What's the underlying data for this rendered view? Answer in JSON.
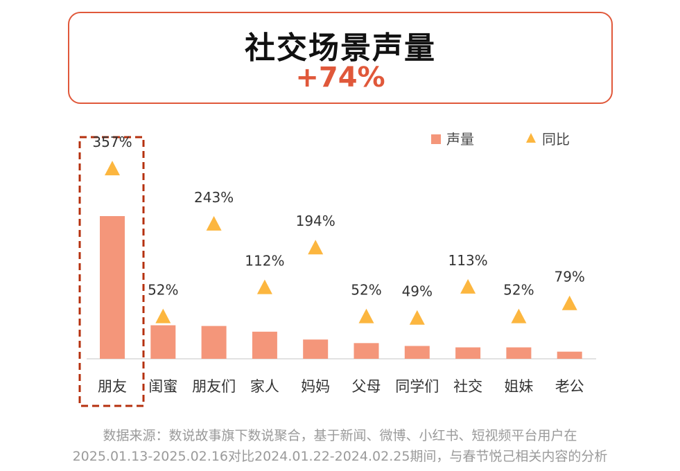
{
  "header": {
    "title": "社交场景声量",
    "growth": "+74%"
  },
  "chart_data": {
    "type": "bar",
    "categories": [
      "朋友",
      "闺蜜",
      "朋友们",
      "家人",
      "妈妈",
      "父母",
      "同学们",
      "社交",
      "姐妹",
      "老公"
    ],
    "series": [
      {
        "name": "声量",
        "kind": "bar",
        "values": [
          100,
          23.5,
          23,
          19,
          13.5,
          11,
          9,
          8,
          8,
          5
        ]
      },
      {
        "name": "同比",
        "kind": "triangle-marker",
        "values": [
          357,
          52,
          243,
          112,
          194,
          52,
          49,
          113,
          52,
          79
        ]
      }
    ],
    "data_labels": [
      "357%",
      "52%",
      "243%",
      "112%",
      "194%",
      "52%",
      "49%",
      "113%",
      "52%",
      "79%"
    ],
    "legend": [
      "声量",
      "同比"
    ],
    "legend_position": "top-right",
    "highlight_category": "朋友",
    "value_axis_visible": false
  },
  "colors": {
    "bar": "#F4967A",
    "marker": "#FCB63F",
    "accent": "#E0583A",
    "highlight": "#B5300E"
  },
  "source": {
    "line1": "数据来源：数说故事旗下数说聚合，基于新闻、微博、小红书、短视频平台用户在",
    "line2": "2025.01.13-2025.02.16对比2024.01.22-2024.02.25期间，与春节悦己相关内容的分析"
  }
}
